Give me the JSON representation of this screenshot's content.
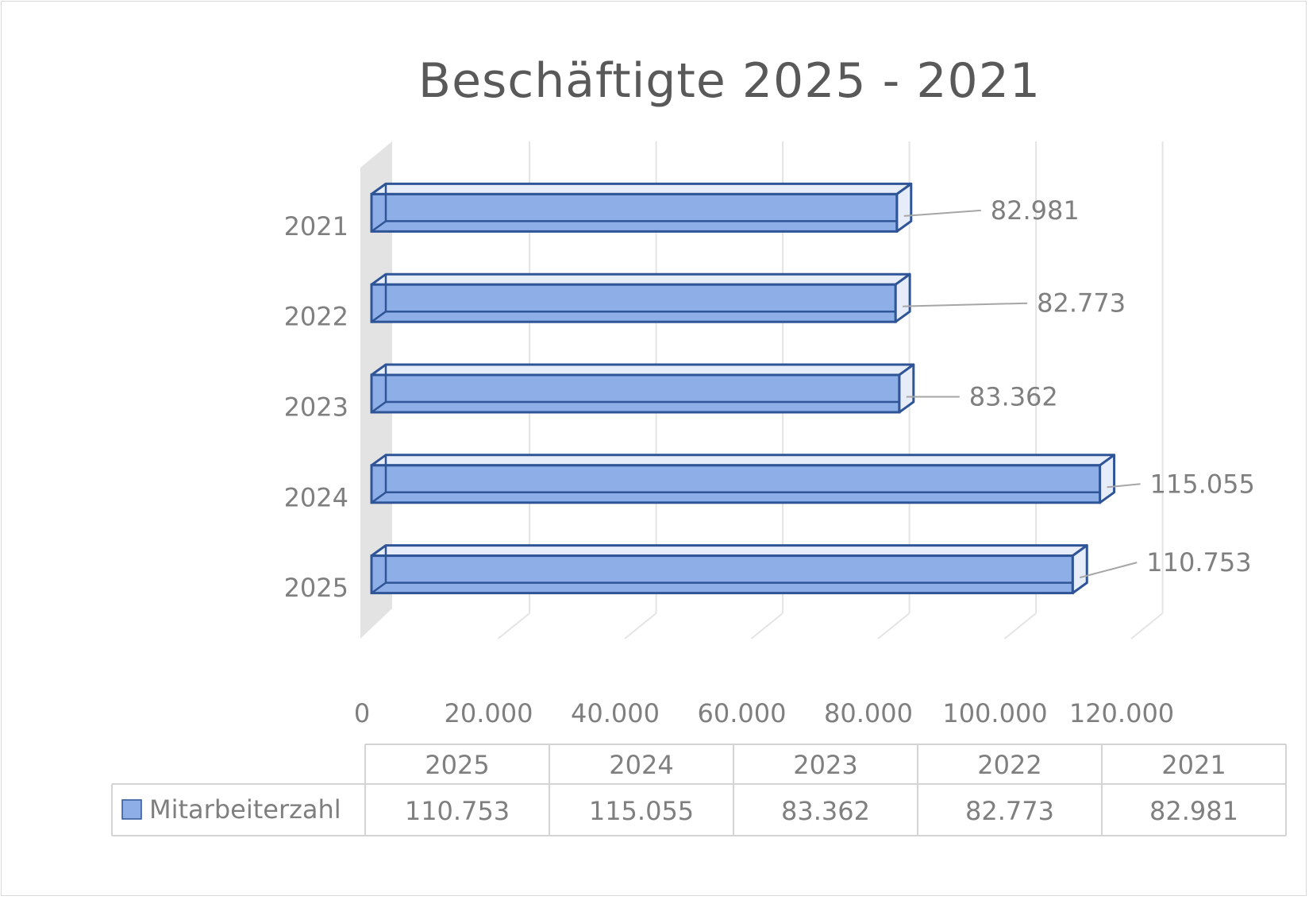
{
  "chart_data": {
    "type": "bar",
    "orientation": "horizontal",
    "style": "3d",
    "title": "Beschäftigte 2025 - 2021",
    "categories": [
      "2025",
      "2024",
      "2023",
      "2022",
      "2021"
    ],
    "series": [
      {
        "name": "Mitarbeiterzahl",
        "values": [
          110753,
          115055,
          83362,
          82773,
          82981
        ],
        "labels": [
          "110.753",
          "115.055",
          "83.362",
          "82.773",
          "82.981"
        ],
        "color": "#8eaee8",
        "border_color": "#2f5597"
      }
    ],
    "xlim": [
      0,
      120000
    ],
    "x_ticks": [
      0,
      20000,
      40000,
      60000,
      80000,
      100000,
      120000
    ],
    "x_tick_labels": [
      "0",
      "20.000",
      "40.000",
      "60.000",
      "80.000",
      "100.000",
      "120.000"
    ],
    "grid": true,
    "data_labels": true,
    "data_table": true,
    "legend": "in-data-table"
  },
  "colors": {
    "text": "#7f7f7f",
    "title": "#595959",
    "grid": "#e4e4e4",
    "wall": "#e3e3e3",
    "table_border": "#d4d4d4"
  }
}
